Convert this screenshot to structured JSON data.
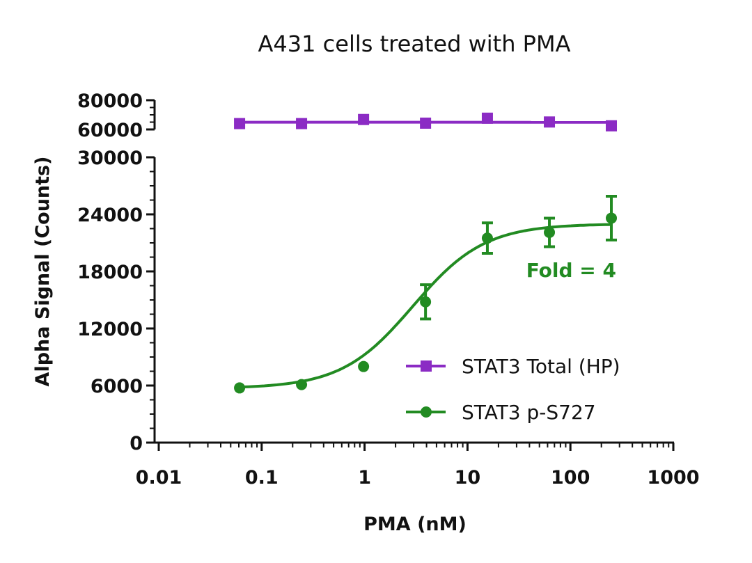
{
  "chart_data": {
    "type": "scatter",
    "title": "A431 cells treated with PMA",
    "xlabel": "PMA (nM)",
    "ylabel": "Alpha Signal (Counts)",
    "x_scale": "log",
    "xlim": [
      0.01,
      1000
    ],
    "x_ticks": [
      "0.01",
      "0.1",
      "1",
      "10",
      "100",
      "1000"
    ],
    "y_segments": [
      {
        "ylim": [
          0,
          30000
        ],
        "ticks": [
          "0",
          "6000",
          "12000",
          "18000",
          "24000",
          "30000"
        ]
      },
      {
        "ylim": [
          60000,
          80000
        ],
        "ticks": [
          "60000",
          "80000"
        ]
      }
    ],
    "y_broken_axis": true,
    "grid": false,
    "legend_position": "bottom-right",
    "series": [
      {
        "name": "STAT3 Total (HP)",
        "color": "#8B2BC4",
        "marker": "square",
        "x": [
          0.061,
          0.244,
          0.977,
          3.91,
          15.6,
          62.5,
          250
        ],
        "y": [
          64000,
          64000,
          66800,
          64300,
          67700,
          65100,
          62500
        ],
        "error": [
          0,
          0,
          0,
          0,
          0,
          0,
          0
        ],
        "fit": "flat"
      },
      {
        "name": "STAT3 p-S727",
        "color": "#228B22",
        "marker": "circle",
        "x": [
          0.061,
          0.244,
          0.977,
          3.91,
          15.6,
          62.5,
          250
        ],
        "y": [
          5750,
          6100,
          8000,
          14800,
          21500,
          22100,
          23600
        ],
        "error": [
          0,
          0,
          0,
          1800,
          1600,
          1500,
          2300
        ],
        "fit": "sigmoid"
      }
    ],
    "annotations": [
      {
        "text": "Fold = 4",
        "color": "#228B22"
      }
    ]
  }
}
